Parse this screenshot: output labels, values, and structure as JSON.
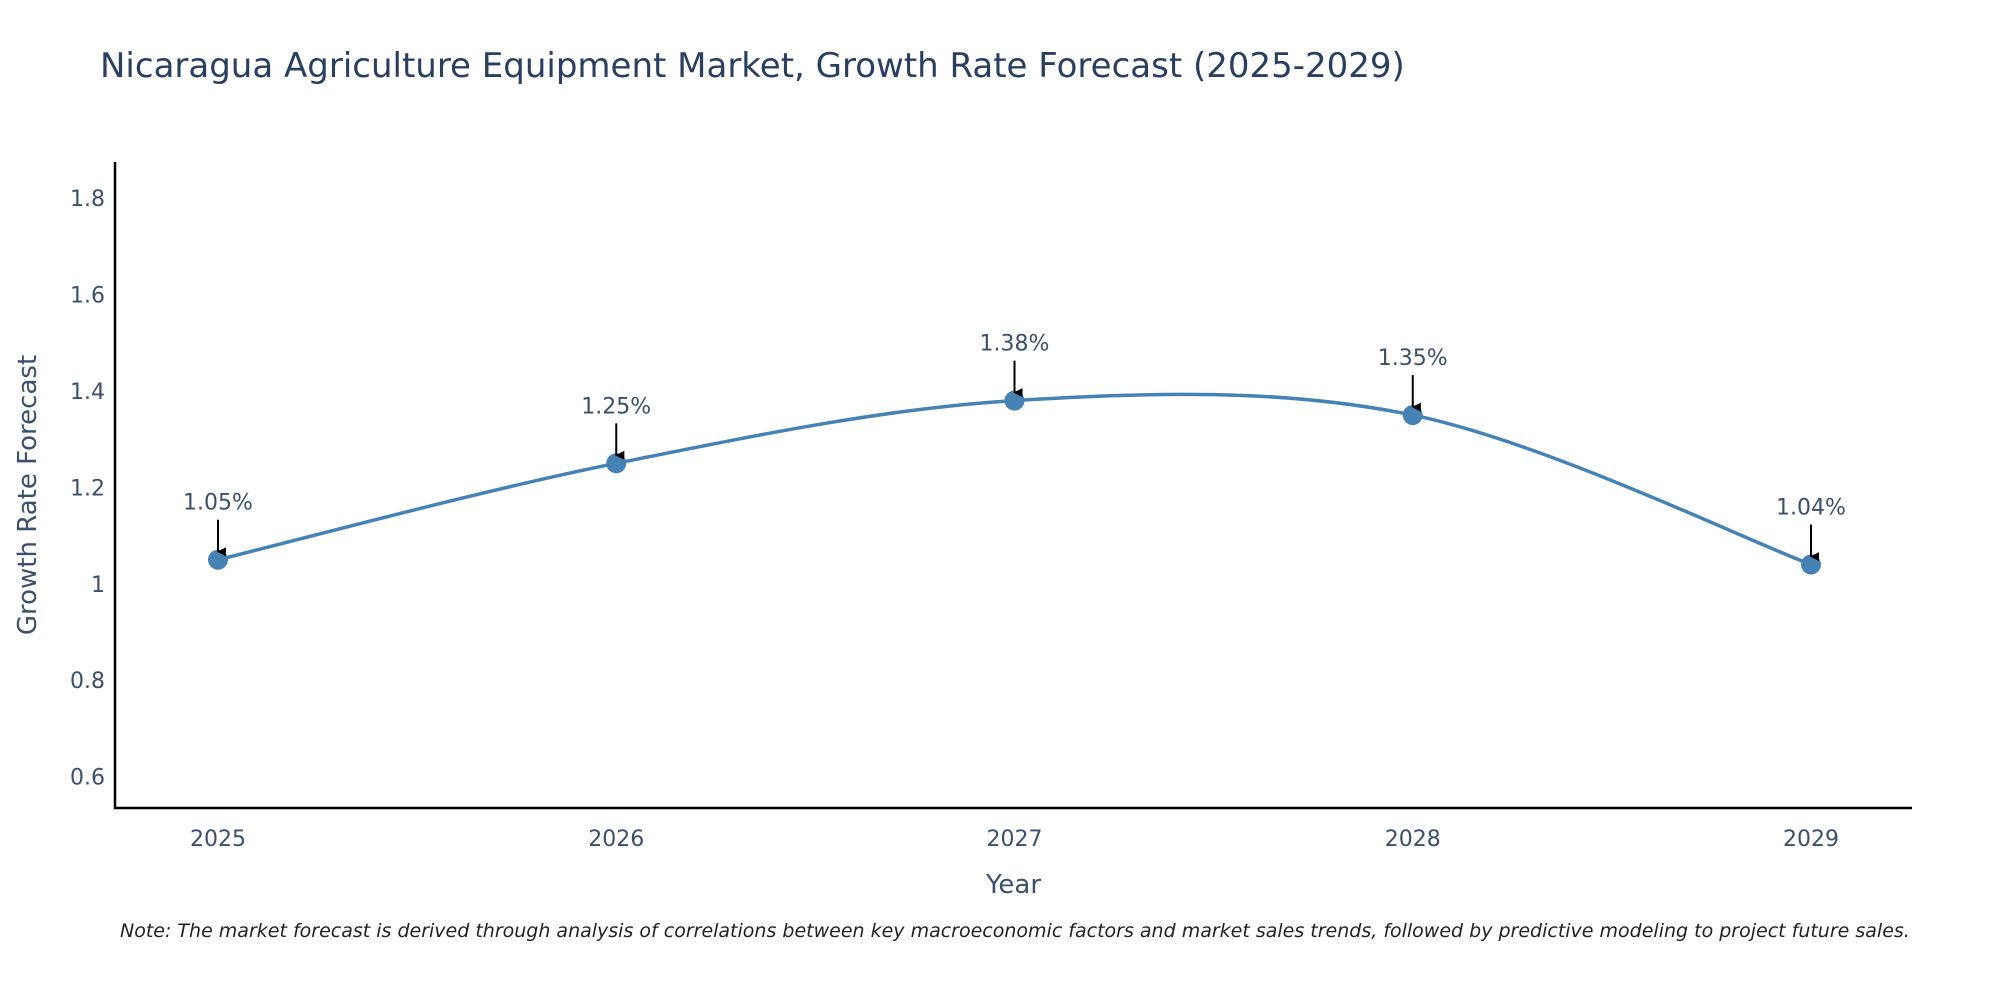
{
  "chart_data": {
    "type": "line",
    "title": "Nicaragua Agriculture Equipment Market, Growth Rate Forecast (2025-2029)",
    "xlabel": "Year",
    "ylabel": "Growth Rate Forecast",
    "categories": [
      "2025",
      "2026",
      "2027",
      "2028",
      "2029"
    ],
    "series": [
      {
        "name": "Growth Rate Forecast",
        "values": [
          1.05,
          1.25,
          1.38,
          1.35,
          1.04
        ],
        "labels": [
          "1.05%",
          "1.25%",
          "1.38%",
          "1.35%",
          "1.04%"
        ]
      }
    ],
    "ylim": [
      0.535,
      1.875
    ],
    "yticks": [
      0.6,
      0.8,
      1,
      1.2,
      1.4,
      1.6,
      1.8
    ],
    "ytick_labels": [
      "0.6",
      "0.8",
      "1",
      "1.2",
      "1.4",
      "1.6",
      "1.8"
    ],
    "grid": false,
    "line_color": "#4682b4",
    "note": "Note: The market forecast is derived through analysis of correlations between key macroeconomic factors and market sales trends, followed by predictive modeling to project future sales."
  }
}
